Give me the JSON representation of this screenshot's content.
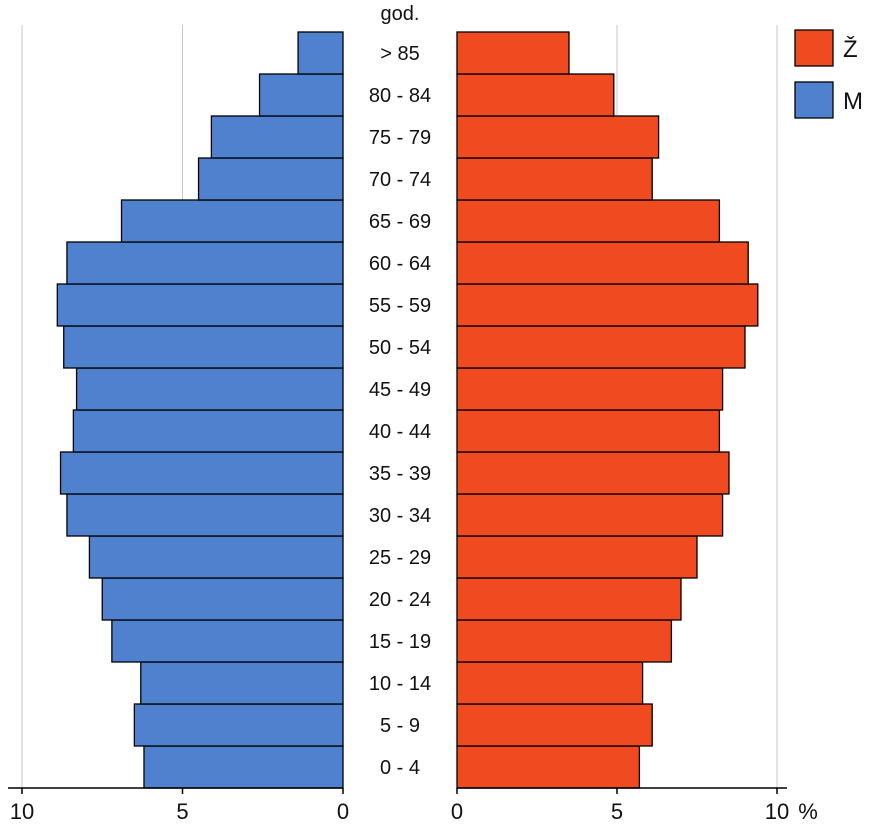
{
  "chart_data": {
    "type": "bar",
    "orientation": "horizontal",
    "subtype": "population-pyramid",
    "category_header": "god.",
    "categories": [
      "0 - 4",
      "5 - 9",
      "10 - 14",
      "15 - 19",
      "20 - 24",
      "25 - 29",
      "30 - 34",
      "35 - 39",
      "40 - 44",
      "45 - 49",
      "50 - 54",
      "55 - 59",
      "60 - 64",
      "65 - 69",
      "70 - 74",
      "75 - 79",
      "80 - 84",
      "> 85"
    ],
    "series": [
      {
        "name": "M",
        "side": "left",
        "color": "#4f81cf",
        "values": [
          6.2,
          6.5,
          6.3,
          7.2,
          7.5,
          7.9,
          8.6,
          8.8,
          8.4,
          8.3,
          8.7,
          8.9,
          8.6,
          6.9,
          4.5,
          4.1,
          2.6,
          1.4
        ]
      },
      {
        "name": "Ž",
        "side": "right",
        "color": "#f04a20",
        "values": [
          5.7,
          6.1,
          5.8,
          6.7,
          7.0,
          7.5,
          8.3,
          8.5,
          8.2,
          8.3,
          9.0,
          9.4,
          9.1,
          8.2,
          6.1,
          6.3,
          4.9,
          3.5
        ]
      }
    ],
    "x_axis": {
      "left_ticks": [
        10,
        5,
        0
      ],
      "right_ticks": [
        0,
        5,
        10
      ],
      "unit": "%",
      "range": [
        0,
        10
      ],
      "grid": true
    },
    "legend": {
      "position": "top-right",
      "entries": [
        "Ž",
        "M"
      ]
    }
  }
}
